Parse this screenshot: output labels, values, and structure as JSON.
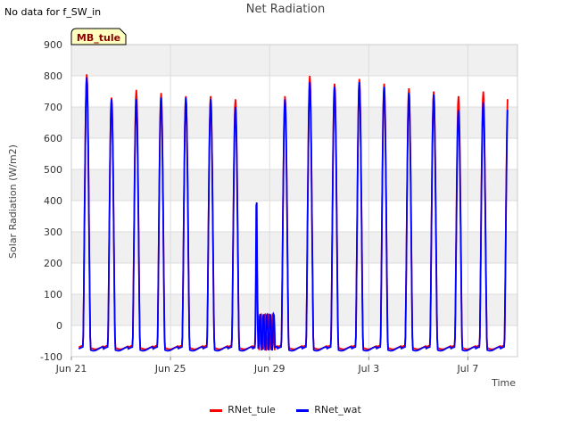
{
  "header": {
    "no_data_note": "No data for f_SW_in",
    "title": "Net Radiation"
  },
  "site_badge": "MB_tule",
  "chart_data": {
    "type": "line",
    "title": "Net Radiation",
    "xlabel": "Time",
    "ylabel": "Solar Radiation (W/m2)",
    "x_unit": "day of period starting Jun 21",
    "xlim": [
      0,
      18
    ],
    "ylim": [
      -100,
      900
    ],
    "yticks": [
      -100,
      0,
      100,
      200,
      300,
      400,
      500,
      600,
      700,
      800,
      900
    ],
    "xticks": [
      {
        "x": 0,
        "label": "Jun 21"
      },
      {
        "x": 4,
        "label": "Jun 25"
      },
      {
        "x": 8,
        "label": "Jun 29"
      },
      {
        "x": 12,
        "label": "Jul 3"
      },
      {
        "x": 16,
        "label": "Jul 7"
      }
    ],
    "grid": true,
    "background_bands": true,
    "legend_position": "bottom-center",
    "series": [
      {
        "name": "RNet_tule",
        "color": "#ff0000",
        "daily_peaks": [
          805,
          730,
          755,
          745,
          735,
          735,
          725,
          220,
          735,
          800,
          775,
          790,
          775,
          760,
          750,
          735,
          750
        ],
        "night_level": -70
      },
      {
        "name": "RNet_wat",
        "color": "#0000ff",
        "daily_peaks": [
          795,
          725,
          725,
          730,
          730,
          725,
          700,
          370,
          725,
          780,
          765,
          780,
          765,
          745,
          740,
          690,
          715
        ],
        "night_level": -75
      }
    ],
    "day_start": 0.3,
    "num_days": 17.3
  },
  "colors": {
    "band": "#f0f0f0",
    "grid": "#dddddd",
    "badge_bg": "#ffffc0",
    "badge_text": "#8b0000"
  }
}
